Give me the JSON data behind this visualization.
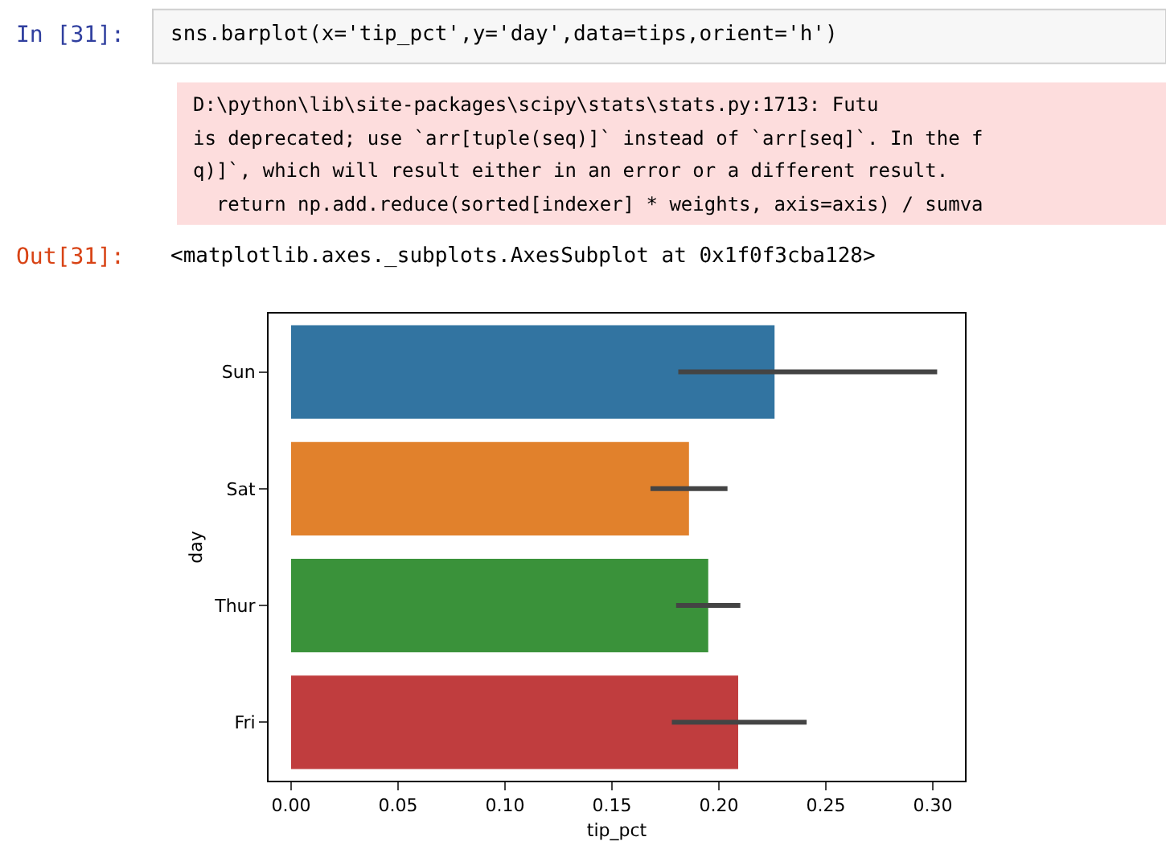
{
  "chart_data": {
    "type": "bar",
    "orientation": "horizontal",
    "categories": [
      "Sun",
      "Sat",
      "Thur",
      "Fri"
    ],
    "values": [
      0.226,
      0.186,
      0.195,
      0.209
    ],
    "colors": [
      "#3274a1",
      "#e1812c",
      "#3a923a",
      "#c03d3e"
    ],
    "errors": [
      [
        0.181,
        0.302
      ],
      [
        0.168,
        0.204
      ],
      [
        0.18,
        0.21
      ],
      [
        0.178,
        0.241
      ]
    ],
    "xlabel": "tip_pct",
    "ylabel": "day",
    "xlim": [
      -0.0105,
      0.315
    ],
    "xticks": [
      {
        "value": 0,
        "label": "0.00"
      },
      {
        "value": 0.05,
        "label": "0.05"
      },
      {
        "value": 0.1,
        "label": "0.10"
      },
      {
        "value": 0.15,
        "label": "0.15"
      },
      {
        "value": 0.2,
        "label": "0.20"
      },
      {
        "value": 0.25,
        "label": "0.25"
      },
      {
        "value": 0.3,
        "label": "0.30"
      }
    ],
    "annotations": [
      "In [31]:",
      "sns.barplot(x='tip_pct',y='day',data=tips,orient='h')",
      "D:\\python\\lib\\site-packages\\scipy\\stats\\stats.py:1713: Futu",
      "is deprecated; use `arr[tuple(seq)]` instead of `arr[seq]`. In the f",
      "q)]`, which will result either in an error or a different result.",
      "  return np.add.reduce(sorted[indexer] * weights, axis=axis) / sumva",
      "Out[31]:",
      "<matplotlib.axes._subplots.AxesSubplot at 0x1f0f3cba128>"
    ]
  }
}
